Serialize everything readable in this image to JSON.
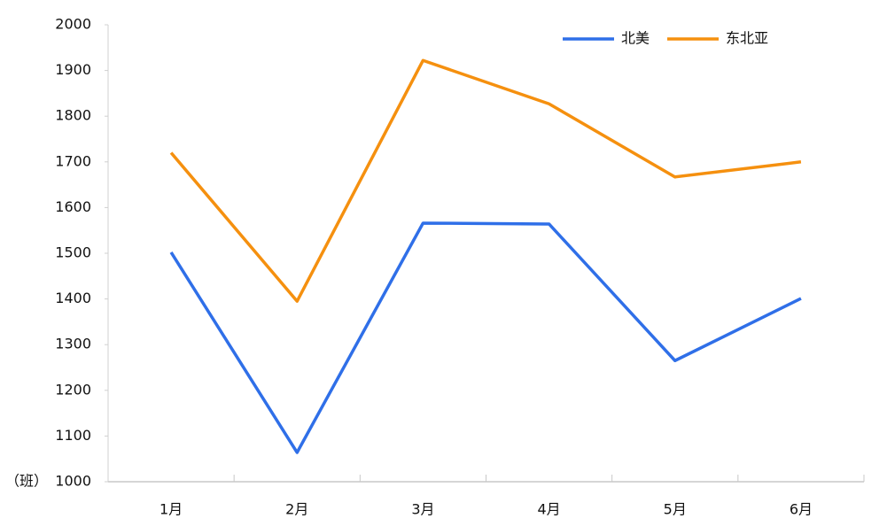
{
  "chart_data": {
    "type": "line",
    "y_label": "（班）",
    "categories": [
      "1月",
      "2月",
      "3月",
      "4月",
      "5月",
      "6月"
    ],
    "series": [
      {
        "name": "北美",
        "color": "#2f6fe8",
        "values": [
          1502,
          1064,
          1566,
          1564,
          1265,
          1401
        ]
      },
      {
        "name": "东北亚",
        "color": "#f5900f",
        "values": [
          1720,
          1395,
          1922,
          1827,
          1667,
          1700
        ]
      }
    ],
    "ylim": [
      1000,
      2000
    ],
    "yticks": [
      1000,
      1100,
      1200,
      1300,
      1400,
      1500,
      1600,
      1700,
      1800,
      1900,
      2000
    ],
    "grid": false,
    "legend": "top-right"
  }
}
